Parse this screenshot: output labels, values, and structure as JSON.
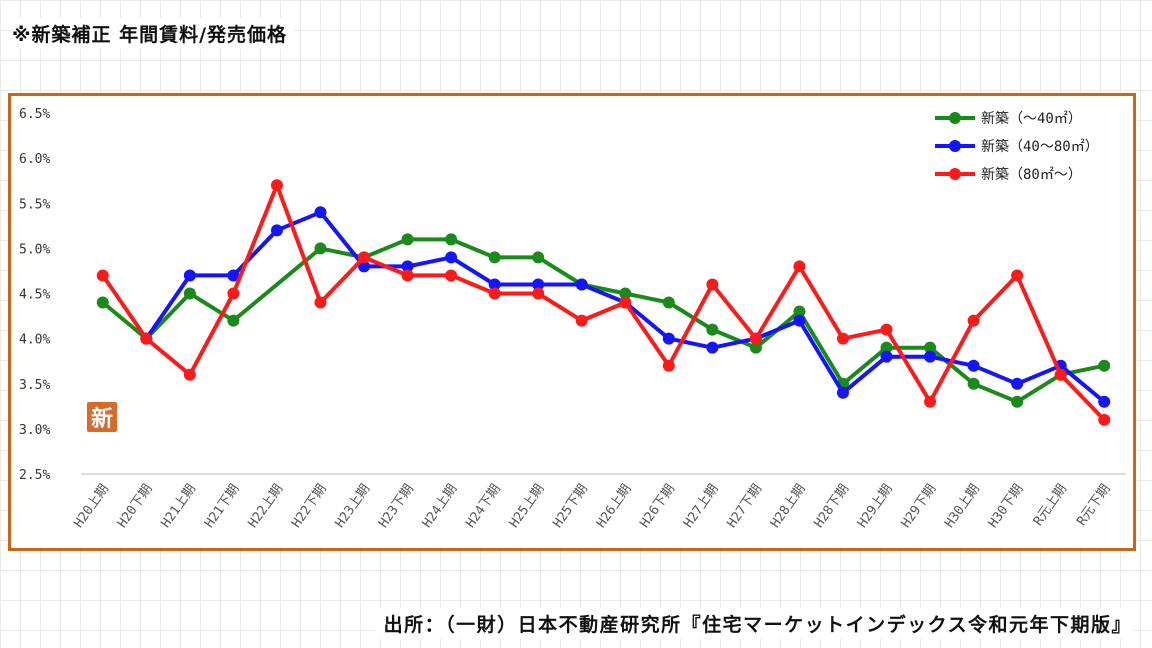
{
  "title": "※新築補正 年間賃料/発売価格",
  "source": "出所：（一財）日本不動産研究所『住宅マーケットインデックス令和元年下期版』",
  "marker_label": "新",
  "chart_data": {
    "type": "line",
    "categories": [
      "H20上期",
      "H20下期",
      "H21上期",
      "H21下期",
      "H22上期",
      "H22下期",
      "H23上期",
      "H23下期",
      "H24上期",
      "H24下期",
      "H25上期",
      "H25下期",
      "H26上期",
      "H26下期",
      "H27上期",
      "H27下期",
      "H28上期",
      "H28下期",
      "H29上期",
      "H29下期",
      "H30上期",
      "H30下期",
      "R元上期",
      "R元下期"
    ],
    "ylim": [
      2.5,
      6.5
    ],
    "yticks": [
      "2.5%",
      "3.0%",
      "3.5%",
      "4.0%",
      "4.5%",
      "5.0%",
      "5.5%",
      "6.0%",
      "6.5%"
    ],
    "ytick_values": [
      2.5,
      3.0,
      3.5,
      4.0,
      4.5,
      5.0,
      5.5,
      6.0,
      6.5
    ],
    "legend_position": "top-right",
    "series": [
      {
        "name": "新築（～40㎡）",
        "color": "#1a8a1a",
        "values": [
          4.4,
          4.0,
          4.5,
          4.2,
          null,
          5.0,
          4.9,
          5.1,
          5.1,
          4.9,
          4.9,
          4.6,
          4.5,
          4.4,
          4.1,
          3.9,
          4.3,
          3.5,
          3.9,
          3.9,
          3.5,
          3.3,
          3.6,
          3.7
        ]
      },
      {
        "name": "新築（40～80㎡）",
        "color": "#1414ff",
        "values": [
          null,
          4.0,
          4.7,
          4.7,
          5.2,
          5.4,
          4.8,
          4.8,
          4.9,
          4.6,
          4.6,
          4.6,
          4.4,
          4.0,
          3.9,
          4.0,
          4.2,
          3.4,
          3.8,
          3.8,
          3.7,
          3.5,
          3.7,
          3.3
        ]
      },
      {
        "name": "新築（80㎡～）",
        "color": "#ff1a1a",
        "values": [
          4.7,
          4.0,
          3.6,
          4.5,
          5.7,
          4.4,
          4.9,
          4.7,
          4.7,
          4.5,
          4.5,
          4.2,
          4.4,
          3.7,
          4.6,
          4.0,
          4.8,
          4.0,
          4.1,
          3.3,
          4.2,
          4.7,
          3.6,
          3.1
        ]
      }
    ]
  }
}
